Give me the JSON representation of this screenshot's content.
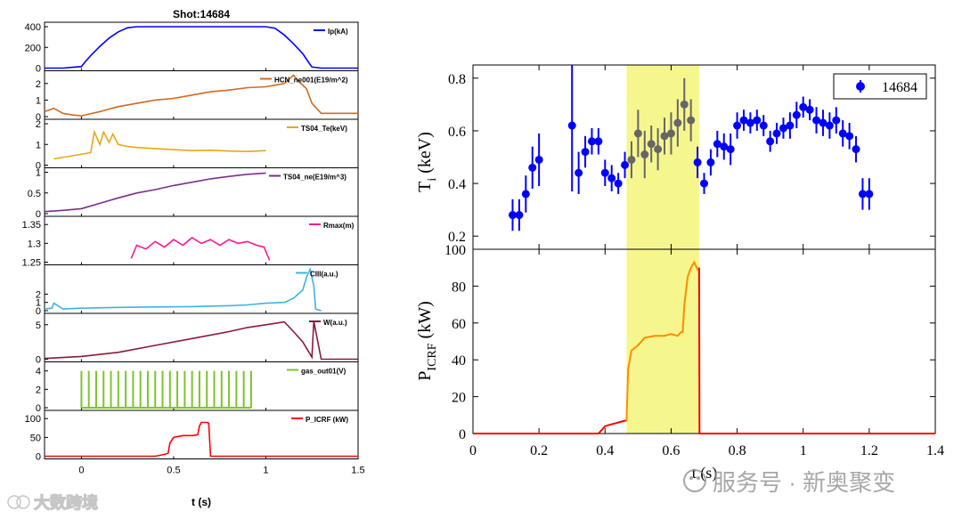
{
  "chart_data": [
    {
      "type": "line",
      "title": "Shot:14684",
      "xlabel": "t (s)",
      "x_ticks": [
        "0",
        "0.5",
        "1",
        "1.5"
      ],
      "xlim": [
        -0.2,
        1.5
      ],
      "panels": [
        {
          "legend": "Ip(kA)",
          "color": "#0000ff",
          "ylim": [
            0,
            400
          ],
          "yticks": [
            "400",
            "200",
            "0"
          ],
          "x": [
            -0.2,
            -0.1,
            -0.05,
            0.0,
            0.02,
            0.05,
            0.1,
            0.15,
            0.2,
            0.25,
            0.3,
            0.35,
            1.0,
            1.05,
            1.1,
            1.15,
            1.2,
            1.23,
            1.25,
            1.3,
            1.5
          ],
          "y": [
            0,
            0,
            8,
            15,
            60,
            120,
            210,
            290,
            350,
            390,
            400,
            400,
            400,
            385,
            320,
            235,
            140,
            60,
            10,
            0,
            0
          ]
        },
        {
          "legend": "HCN_ne001(E19/m^2)",
          "color": "#d2691e",
          "ylim": [
            0,
            2.5
          ],
          "yticks": [
            "2",
            "1",
            "0"
          ],
          "x": [
            -0.2,
            -0.15,
            -0.1,
            -0.05,
            0.0,
            0.1,
            0.2,
            0.3,
            0.4,
            0.5,
            0.6,
            0.7,
            0.8,
            0.9,
            1.0,
            1.05,
            1.1,
            1.15,
            1.18,
            1.22,
            1.25,
            1.3,
            1.5
          ],
          "y": [
            0.3,
            0.5,
            0.2,
            0.1,
            0.05,
            0.3,
            0.6,
            0.8,
            1.0,
            1.1,
            1.3,
            1.5,
            1.6,
            1.75,
            1.8,
            1.9,
            2.0,
            2.5,
            2.1,
            1.7,
            0.8,
            0.2,
            0.2
          ]
        },
        {
          "legend": "TS04_Te(keV)",
          "color": "#e6a817",
          "ylim": [
            0,
            2
          ],
          "yticks": [
            "2",
            "1",
            "0"
          ],
          "x": [
            -0.15,
            -0.05,
            0.05,
            0.07,
            0.1,
            0.12,
            0.15,
            0.17,
            0.2,
            0.25,
            0.3,
            0.4,
            0.5,
            0.6,
            0.7,
            0.8,
            0.9,
            1.0
          ],
          "y": [
            0.3,
            0.45,
            0.6,
            1.6,
            1.0,
            1.6,
            1.1,
            1.5,
            1.0,
            0.9,
            0.85,
            0.8,
            0.75,
            0.7,
            0.72,
            0.68,
            0.66,
            0.7
          ]
        },
        {
          "legend": "TS04_ne(E19/m^3)",
          "color": "#7b2d8e",
          "ylim": [
            0,
            1
          ],
          "yticks": [
            "1",
            "0.5",
            "0"
          ],
          "x": [
            -0.2,
            -0.1,
            0.0,
            0.1,
            0.2,
            0.3,
            0.4,
            0.5,
            0.6,
            0.7,
            0.8,
            0.9,
            1.0
          ],
          "y": [
            0.05,
            0.08,
            0.12,
            0.25,
            0.38,
            0.5,
            0.58,
            0.68,
            0.76,
            0.84,
            0.9,
            0.95,
            0.98
          ]
        },
        {
          "legend": "Rmax(m)",
          "color": "#ff1493",
          "ylim": [
            1.25,
            1.36
          ],
          "yticks": [
            "1.35",
            "1.3",
            "1.25"
          ],
          "x": [
            0.27,
            0.3,
            0.35,
            0.4,
            0.45,
            0.5,
            0.55,
            0.6,
            0.65,
            0.7,
            0.75,
            0.8,
            0.85,
            0.9,
            0.95,
            0.99,
            1.02
          ],
          "y": [
            1.26,
            1.295,
            1.285,
            1.305,
            1.29,
            1.31,
            1.295,
            1.315,
            1.3,
            1.31,
            1.295,
            1.31,
            1.3,
            1.305,
            1.295,
            1.29,
            1.255
          ]
        },
        {
          "legend": "CIII(a.u.)",
          "color": "#3cb4e0",
          "ylim": [
            0,
            5
          ],
          "yticks": [
            "2",
            "1",
            "0"
          ],
          "x": [
            -0.2,
            -0.16,
            -0.15,
            -0.1,
            0.0,
            0.2,
            0.4,
            0.6,
            0.8,
            0.9,
            1.0,
            1.1,
            1.15,
            1.2,
            1.22,
            1.24,
            1.26,
            1.27,
            1.3
          ],
          "y": [
            0.2,
            0.3,
            0.9,
            0.2,
            0.3,
            0.4,
            0.45,
            0.5,
            0.6,
            0.7,
            0.9,
            1.0,
            1.5,
            2.5,
            4.0,
            5.0,
            3.0,
            0.2,
            0.0
          ]
        },
        {
          "legend": "W(a.u.)",
          "color": "#8b1a3a",
          "ylim": [
            0,
            6
          ],
          "yticks": [
            "5",
            "0"
          ],
          "x": [
            -0.2,
            0.0,
            0.2,
            0.4,
            0.6,
            0.8,
            0.9,
            1.0,
            1.1,
            1.15,
            1.2,
            1.25,
            1.26,
            1.3,
            1.5
          ],
          "y": [
            0.1,
            0.4,
            1.0,
            2.0,
            3.0,
            4.0,
            4.6,
            5.0,
            5.4,
            4.0,
            2.5,
            0.3,
            5.5,
            0.0,
            0.0
          ]
        },
        {
          "legend": "gas_out01(V)",
          "color": "#7cc42c",
          "ylim": [
            0,
            4.5
          ],
          "yticks": [
            "4",
            "2",
            "0"
          ],
          "pulse_start": 0.0,
          "pulse_period": 0.04,
          "pulse_count": 24,
          "pulse_high": 4.0
        },
        {
          "legend": "P_ICRF (kW)",
          "color": "#ff0000",
          "ylim": [
            0,
            110
          ],
          "yticks": [
            "100",
            "50",
            "0"
          ],
          "x": [
            -0.2,
            0.4,
            0.45,
            0.47,
            0.48,
            0.5,
            0.55,
            0.6,
            0.63,
            0.64,
            0.65,
            0.68,
            0.69,
            0.7,
            1.5
          ],
          "y": [
            0,
            0,
            5,
            8,
            35,
            50,
            55,
            55,
            57,
            80,
            90,
            90,
            88,
            0,
            0
          ]
        }
      ]
    },
    {
      "type": "scatter",
      "legend": "14684",
      "xlabel": "t (s)",
      "ylabel": "Ti (keV)",
      "xlim": [
        0,
        1.4
      ],
      "ylim": [
        0.15,
        0.85
      ],
      "x_ticks": [
        "0",
        "0.2",
        "0.4",
        "0.6",
        "0.8",
        "1",
        "1.2",
        "1.4"
      ],
      "y_ticks": [
        "0.8",
        "0.6",
        "0.4",
        "0.2"
      ],
      "highlight_x": [
        0.465,
        0.685
      ],
      "x": [
        0.12,
        0.14,
        0.16,
        0.18,
        0.2,
        0.3,
        0.32,
        0.34,
        0.36,
        0.38,
        0.4,
        0.42,
        0.44,
        0.46,
        0.48,
        0.5,
        0.52,
        0.54,
        0.56,
        0.58,
        0.6,
        0.62,
        0.64,
        0.66,
        0.68,
        0.7,
        0.72,
        0.74,
        0.76,
        0.78,
        0.8,
        0.82,
        0.84,
        0.86,
        0.88,
        0.9,
        0.92,
        0.94,
        0.96,
        0.98,
        1.0,
        1.02,
        1.04,
        1.06,
        1.08,
        1.1,
        1.12,
        1.14,
        1.16,
        1.18,
        1.2
      ],
      "y": [
        0.28,
        0.28,
        0.36,
        0.46,
        0.49,
        0.62,
        0.44,
        0.52,
        0.56,
        0.56,
        0.44,
        0.42,
        0.4,
        0.47,
        0.49,
        0.59,
        0.51,
        0.55,
        0.53,
        0.58,
        0.59,
        0.63,
        0.7,
        0.64,
        0.48,
        0.4,
        0.48,
        0.55,
        0.54,
        0.53,
        0.62,
        0.64,
        0.63,
        0.64,
        0.62,
        0.56,
        0.59,
        0.61,
        0.62,
        0.66,
        0.69,
        0.68,
        0.64,
        0.63,
        0.62,
        0.64,
        0.59,
        0.58,
        0.53,
        0.36,
        0.36
      ],
      "err": [
        0.06,
        0.06,
        0.07,
        0.08,
        0.1,
        0.25,
        0.08,
        0.06,
        0.05,
        0.05,
        0.05,
        0.05,
        0.04,
        0.05,
        0.07,
        0.09,
        0.09,
        0.07,
        0.08,
        0.07,
        0.08,
        0.09,
        0.1,
        0.08,
        0.06,
        0.04,
        0.05,
        0.05,
        0.05,
        0.06,
        0.05,
        0.04,
        0.04,
        0.04,
        0.04,
        0.04,
        0.04,
        0.04,
        0.05,
        0.05,
        0.04,
        0.04,
        0.05,
        0.05,
        0.05,
        0.05,
        0.05,
        0.05,
        0.05,
        0.06,
        0.06
      ]
    },
    {
      "type": "line",
      "xlabel": "t (s)",
      "ylabel": "PICRF (kW)",
      "xlim": [
        0,
        1.4
      ],
      "ylim": [
        0,
        100
      ],
      "x_ticks": [
        "0",
        "0.2",
        "0.4",
        "0.6",
        "0.8",
        "1",
        "1.2",
        "1.4"
      ],
      "y_ticks": [
        "100",
        "80",
        "60",
        "40",
        "20",
        "0"
      ],
      "x": [
        0,
        0.38,
        0.39,
        0.4,
        0.42,
        0.44,
        0.46,
        0.465,
        0.47,
        0.48,
        0.5,
        0.52,
        0.55,
        0.58,
        0.6,
        0.62,
        0.63,
        0.635,
        0.64,
        0.65,
        0.66,
        0.67,
        0.68,
        0.685,
        0.686,
        1.4
      ],
      "y": [
        0,
        0,
        2,
        4,
        5,
        6,
        7,
        7,
        35,
        45,
        48,
        52,
        53,
        53,
        54,
        53,
        55,
        55,
        70,
        85,
        90,
        93,
        89,
        90,
        0,
        0
      ]
    }
  ],
  "watermark_left": "大数跨境",
  "watermark_right": "服务号 · 新奥聚变"
}
